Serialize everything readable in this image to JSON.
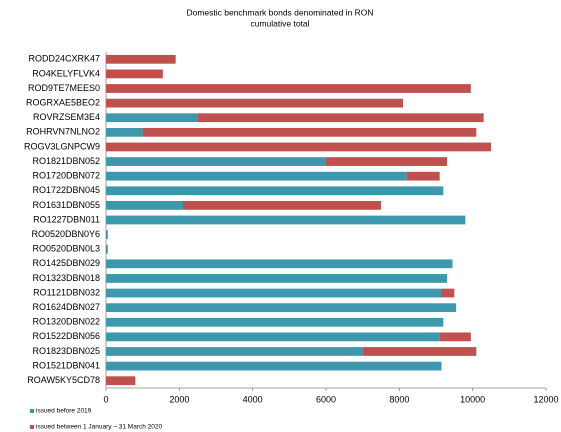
{
  "chart_data": {
    "type": "stacked-barh",
    "title": "Domestic benchmark bonds denominated in RON",
    "subtitle": "cumulative total",
    "categories": [
      "RODD24CXRK47",
      "RO4KELYFLVK4",
      "ROD9TE7MEES0",
      "ROGRXAE5BEO2",
      "ROVRZSEM3E4",
      "ROHRVN7NLNO2",
      "ROGV3LGNPCW9",
      "RO1821DBN052",
      "RO1720DBN072",
      "RO1722DBN045",
      "RO1631DBN055",
      "RO1227DBN011",
      "RO0520DBN0Y6",
      "RO0520DBN0L3",
      "RO1425DBN029",
      "RO1323DBN018",
      "RO1121DBN032",
      "RO1624DBN027",
      "RO1320DBN022",
      "RO1522DBN056",
      "RO1823DBN025",
      "RO1521DBN041",
      "ROAW5KY5CD78"
    ],
    "series": [
      {
        "name": "issued before 2019",
        "color": "#3d98ad",
        "values": [
          0,
          0,
          0,
          0,
          2500,
          1000,
          0,
          6000,
          8200,
          9200,
          2100,
          9800,
          50,
          50,
          9450,
          9300,
          9150,
          9550,
          9200,
          9100,
          7000,
          9150,
          0
        ]
      },
      {
        "name": "issued between 1 January – 31 March 2020",
        "color": "#c0504d",
        "values": [
          1900,
          1550,
          9950,
          8100,
          7800,
          9100,
          10500,
          3300,
          900,
          0,
          5400,
          0,
          0,
          0,
          0,
          0,
          350,
          0,
          0,
          850,
          3100,
          0,
          800
        ]
      }
    ],
    "xlim": [
      0,
      12000
    ],
    "xticks": [
      0,
      2000,
      4000,
      6000,
      8000,
      10000,
      12000
    ]
  }
}
